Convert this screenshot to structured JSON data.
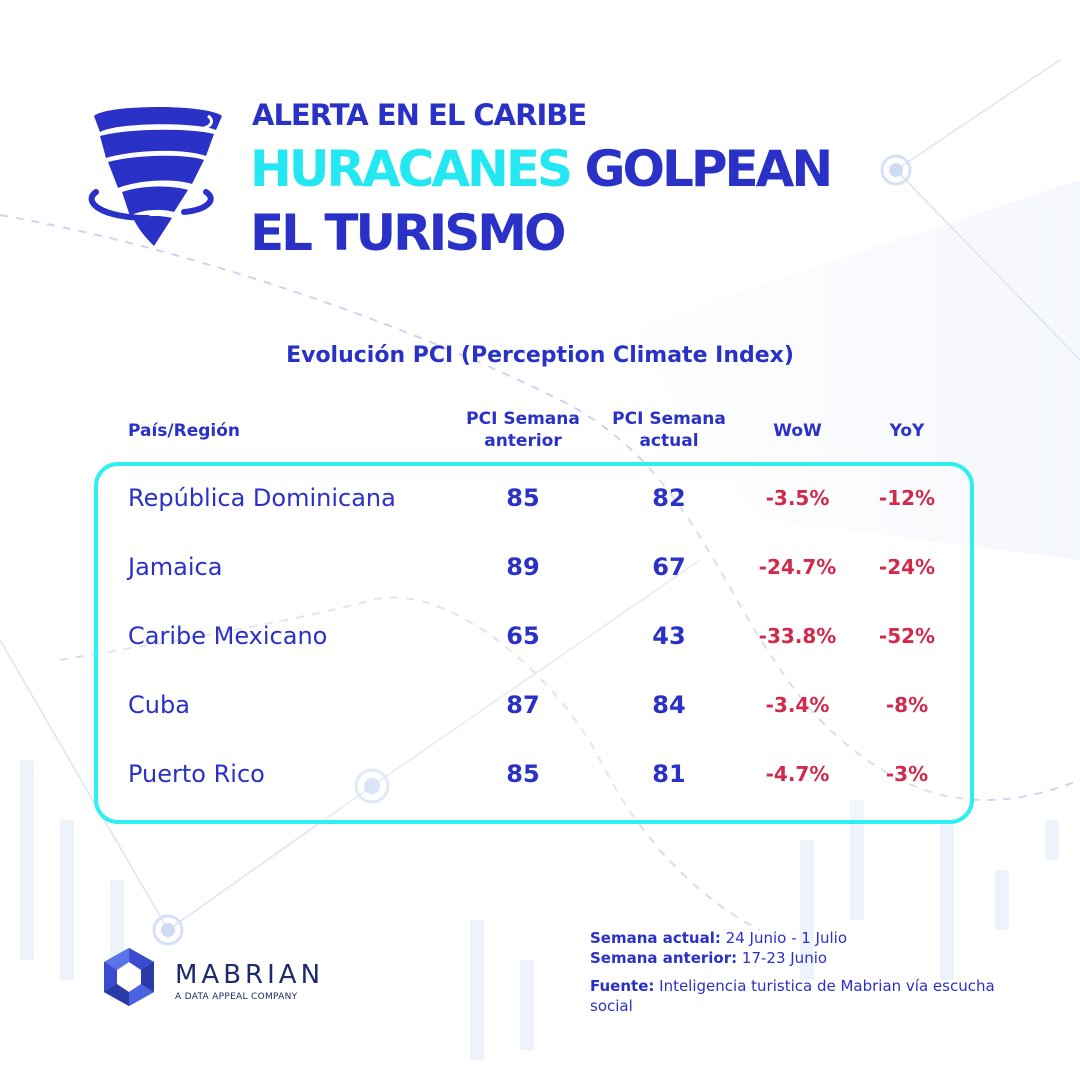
{
  "header": {
    "kicker": "ALERTA EN EL CARIBE",
    "headline_highlight": "HURACANES",
    "headline_rest": "GOLPEAN",
    "headline_line2": "EL TURISMO",
    "icon": "tornado-icon"
  },
  "table": {
    "title": "Evolución PCI (Perception Climate Index)",
    "columns": {
      "country": "País/Región",
      "prev_line1": "PCI Semana",
      "prev_line2": "anterior",
      "curr_line1": "PCI Semana",
      "curr_line2": "actual",
      "wow": "WoW",
      "yoy": "YoY"
    },
    "rows": [
      {
        "country": "República Dominicana",
        "prev": "85",
        "curr": "82",
        "wow": "-3.5%",
        "yoy": "-12%"
      },
      {
        "country": "Jamaica",
        "prev": "89",
        "curr": "67",
        "wow": "-24.7%",
        "yoy": "-24%"
      },
      {
        "country": "Caribe Mexicano",
        "prev": "65",
        "curr": "43",
        "wow": "-33.8%",
        "yoy": "-52%"
      },
      {
        "country": "Cuba",
        "prev": "87",
        "curr": "84",
        "wow": "-3.4%",
        "yoy": "-8%"
      },
      {
        "country": "Puerto Rico",
        "prev": "85",
        "curr": "81",
        "wow": "-4.7%",
        "yoy": "-3%"
      }
    ]
  },
  "brand": {
    "name": "MABRIAN",
    "tagline": "A DATA APPEAL COMPANY",
    "icon": "mabrian-logo-icon"
  },
  "notes": {
    "current_label": "Semana actual:",
    "current_value": " 24 Junio - 1 Julio",
    "previous_label": "Semana anterior:",
    "previous_value": " 17-23 Junio",
    "source_label": "Fuente:",
    "source_value": " Inteligencia turistica de Mabrian vía escucha social"
  },
  "colors": {
    "primary_blue": "#2a31c6",
    "cyan": "#24e8f1",
    "negative_red": "#d02a4c",
    "frame_cyan": "#2ef0f0"
  }
}
